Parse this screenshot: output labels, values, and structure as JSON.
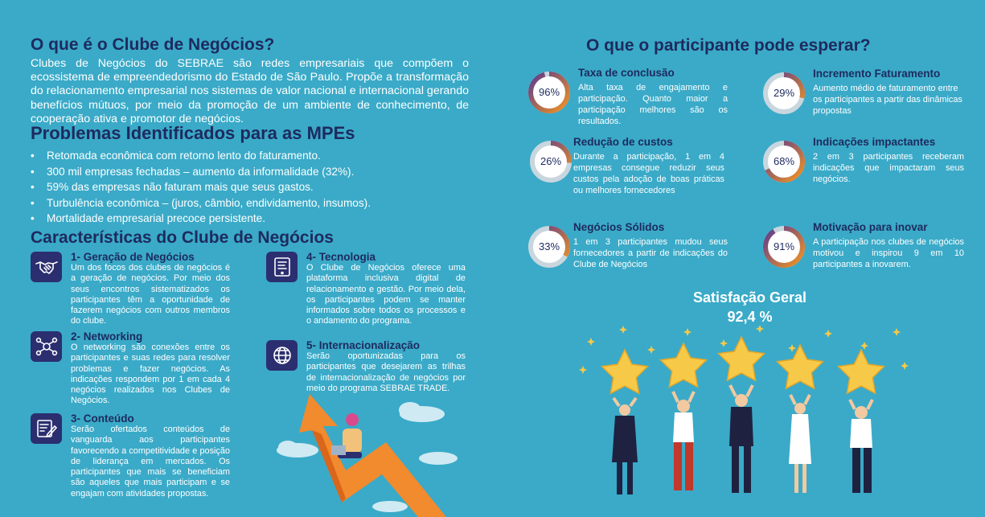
{
  "left": {
    "title": "O que é o Clube de Negócios?",
    "intro": "Clubes de Negócios do SEBRAE são redes empresariais que compõem o ecossistema de empreendedorismo do Estado de São Paulo. Propõe a transformação do relacionamento empresarial nos sistemas de valor nacional e internacional gerando benefícios mútuos, por meio da promoção de um ambiente de conhecimento, de cooperação ativa e promotor de negócios.",
    "problems_title": "Problemas Identificados para as MPEs",
    "problems": [
      "Retomada econômica com retorno lento do faturamento.",
      "300 mil empresas fechadas – aumento da informalidade (32%).",
      "59% das empresas não faturam mais que seus gastos.",
      "Turbulência econômica – (juros, câmbio, endividamento, insumos).",
      "Mortalidade empresarial precoce persistente."
    ],
    "features_title": "Características do Clube de Negócios",
    "features": [
      {
        "title": "1- Geração de Negócios",
        "icon": "handshake-icon",
        "body": "Um dos focos dos clubes de negócios é a geração de negócios. Por meio dos seus encontros sistematizados os participantes têm a oportunidade de fazerem negócios com outros membros do clube."
      },
      {
        "title": "2- Networking",
        "icon": "network-icon",
        "body": "O networking são conexões entre os participantes e suas redes para resolver problemas e fazer negócios. As indicações respondem por 1 em cada 4 negócios realizados nos Clubes de Negócios."
      },
      {
        "title": "3- Conteúdo",
        "icon": "document-edit-icon",
        "body": "Serão ofertados conteúdos de vanguarda aos participantes favorecendo a competitividade e posição de liderança em mercados. Os participantes que mais se beneficiam são aqueles que mais participam e se engajam com atividades propostas."
      },
      {
        "title": "4- Tecnologia",
        "icon": "tablet-icon",
        "body": "O Clube de Negócios oferece uma plataforma inclusiva digital de relacionamento e gestão. Por meio dela, os participantes podem se manter informados sobre todos os processos e o andamento do programa."
      },
      {
        "title": "5- Internacionalização",
        "icon": "globe-icon",
        "body": "Serão oportunizadas para os participantes que desejarem as trilhas de internacionalização de negócios por meio do programa SEBRAE TRADE."
      }
    ]
  },
  "right": {
    "title": "O que o participante pode esperar?",
    "stats": [
      {
        "pct_label": "96%",
        "value": 0.96,
        "title": "Taxa de conclusão",
        "body": "Alta taxa de engajamento e participação. Quanto maior a participação melhores são os resultados."
      },
      {
        "pct_label": "29%",
        "value": 0.29,
        "title": "Incremento Faturamento",
        "body": "Aumento médio de faturamento entre os participantes a partir das dinâmicas propostas"
      },
      {
        "pct_label": "26%",
        "value": 0.26,
        "title": "Redução de custos",
        "body": "Durante a participação, 1 em 4 empresas consegue reduzir seus custos pela adoção de boas práticas ou melhores fornecedores"
      },
      {
        "pct_label": "68%",
        "value": 0.68,
        "title": "Indicações impactantes",
        "body": "2 em 3 participantes receberam indicações que impactaram seus negócios."
      },
      {
        "pct_label": "33%",
        "value": 0.33,
        "title": "Negócios Sólidos",
        "body": "1 em 3 participantes mudou seus fornecedores a partir de indicações do Clube de Negócios"
      },
      {
        "pct_label": "91%",
        "value": 0.91,
        "title": "Motivação para inovar",
        "body": "A participação nos clubes de negócios motivou e inspirou 9 em 10 participantes a inovarem."
      }
    ],
    "satisfaction_title": "Satisfação Geral",
    "satisfaction_value": "92,4 %"
  },
  "colors": {
    "background": "#3aaac8",
    "navy": "#1e2a5e",
    "ring_gradient_start": "#f39322",
    "ring_gradient_end": "#5b3a8f",
    "ring_track": "#c9d6de",
    "star": "#f7c948"
  }
}
